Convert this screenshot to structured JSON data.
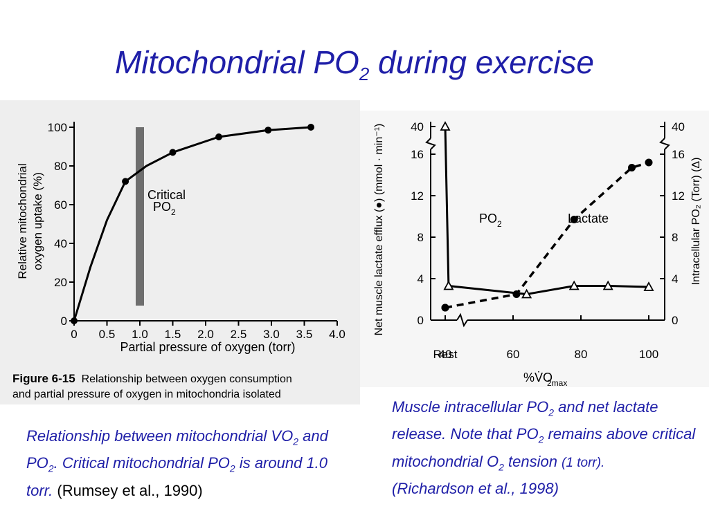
{
  "title": {
    "main": "Mitochondrial PO",
    "sub": "2",
    "rest": " during exercise"
  },
  "figure_caption": {
    "label": "Figure 6-15",
    "text": "Relationship between oxygen consumption",
    "line2": "and partial pressure of oxygen in mitochondria isolated"
  },
  "left_caption": {
    "p1": "Relationship between mitochondrial VO",
    "s1": "2",
    "p2": " and PO",
    "s2": "2",
    "p3": ".  Critical mitochondrial PO",
    "s3": "2",
    "p4": " is around 1.0 torr.",
    "ref": " (Rumsey et al., 1990)"
  },
  "right_caption": {
    "p1": "Muscle intracellular PO",
    "s1": "2",
    "p2": " and net lactate release.  Note that PO",
    "s2": "2",
    "p3": " remains above critical mitochondrial O",
    "s3": "2",
    "p4": " tension ",
    "ref1": "(1 torr).",
    "ref2": "(Richardson et al., 1998)"
  },
  "colors": {
    "accent": "#1f1fa8",
    "critical_bar": "#6e6e6e"
  },
  "chart_data": [
    {
      "type": "line",
      "xlabel": "Partial pressure of oxygen (torr)",
      "ylabel": "Relative mitochondrial oxygen uptake (%)",
      "xlim": [
        0,
        4.0
      ],
      "ylim": [
        0,
        100
      ],
      "xticks": [
        "0",
        "0.5",
        "1.0",
        "1.5",
        "2.0",
        "2.5",
        "3.0",
        "3.5",
        "4.0"
      ],
      "yticks": [
        "0",
        "20",
        "40",
        "60",
        "80",
        "100"
      ],
      "series": [
        {
          "x": [
            0,
            0.78,
            1.5,
            2.2,
            2.95,
            3.6
          ],
          "y": [
            0,
            72,
            87,
            95,
            98.5,
            100
          ]
        }
      ],
      "annotation": {
        "label": "Critical",
        "sub_label": "PO",
        "sub": "2",
        "x": 1.0
      }
    },
    {
      "type": "line",
      "xlabel": "%V̇O",
      "xlabel_sub": "2max",
      "ylabel_left": "Net muscle lactate efflux (●) (mmol · min⁻¹)",
      "ylabel_right": "Intracellular PO₂ (Torr) (Δ)",
      "xticks": [
        "Rest",
        "40",
        "60",
        "80",
        "100"
      ],
      "yticks": [
        "0",
        "4",
        "8",
        "12",
        "16",
        "40"
      ],
      "series": [
        {
          "name": "PO₂",
          "marker": "triangle",
          "x": [
            "Rest",
            41,
            64,
            78,
            88,
            100
          ],
          "y": [
            40,
            3.3,
            2.5,
            3.3,
            3.3,
            3.2
          ]
        },
        {
          "name": "Lactate",
          "marker": "circle",
          "style": "dashed",
          "x": [
            "Rest",
            40,
            61,
            78,
            95,
            100
          ],
          "y": [
            1.2,
            1.2,
            2.5,
            9.7,
            14.7,
            15.2
          ]
        }
      ]
    }
  ]
}
